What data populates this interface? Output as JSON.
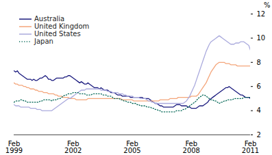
{
  "chart_data": {
    "type": "line",
    "ylabel": "%",
    "categories": [
      "Feb\n1999",
      null,
      null,
      null,
      null,
      null,
      null,
      null,
      null,
      null,
      null,
      null,
      null,
      null,
      null,
      null,
      null,
      null,
      null,
      null,
      null,
      null,
      null,
      null,
      null,
      null,
      null,
      null,
      null,
      null,
      null,
      null,
      null,
      null,
      null,
      null,
      "Feb\n2002",
      null,
      null,
      null,
      null,
      null,
      null,
      null,
      null,
      null,
      null,
      null,
      null,
      null,
      null,
      null,
      null,
      null,
      null,
      null,
      null,
      null,
      null,
      null,
      null,
      null,
      null,
      null,
      null,
      null,
      null,
      null,
      null,
      null,
      null,
      null,
      "Feb\n2005",
      null,
      null,
      null,
      null,
      null,
      null,
      null,
      null,
      null,
      null,
      null,
      null,
      null,
      null,
      null,
      null,
      null,
      null,
      null,
      null,
      null,
      null,
      null,
      null,
      null,
      null,
      null,
      null,
      null,
      null,
      null,
      null,
      null,
      null,
      null,
      "Feb\n2008",
      null,
      null,
      null,
      null,
      null,
      null,
      null,
      null,
      null,
      null,
      null,
      null,
      null,
      null,
      null,
      null,
      null,
      null,
      null,
      null,
      null,
      null,
      null,
      null,
      null,
      null,
      null,
      null,
      null,
      null,
      null,
      null,
      null,
      null,
      null,
      "Feb\n2011"
    ],
    "ylim": [
      2,
      12
    ],
    "yticks": [
      2,
      4,
      6,
      8,
      10,
      12
    ],
    "grid": false,
    "legend": "upper left",
    "series": [
      {
        "name": "Australia",
        "color": "#1a1a7e",
        "line_style": "solid",
        "values": [
          7.3,
          7.2,
          7.3,
          7.1,
          7.0,
          6.9,
          6.8,
          6.7,
          6.6,
          6.6,
          6.6,
          6.5,
          6.6,
          6.5,
          6.5,
          6.6,
          6.7,
          6.7,
          6.8,
          6.9,
          6.8,
          6.6,
          6.6,
          6.5,
          6.5,
          6.6,
          6.7,
          6.7,
          6.7,
          6.7,
          6.7,
          6.8,
          6.8,
          6.9,
          6.9,
          6.8,
          6.7,
          6.6,
          6.5,
          6.4,
          6.3,
          6.4,
          6.3,
          6.2,
          6.2,
          6.3,
          6.2,
          6.1,
          6.0,
          5.9,
          5.9,
          5.9,
          5.8,
          5.9,
          5.8,
          5.7,
          5.7,
          5.7,
          5.6,
          5.5,
          5.5,
          5.5,
          5.4,
          5.3,
          5.3,
          5.3,
          5.2,
          5.2,
          5.2,
          5.2,
          5.2,
          5.1,
          5.1,
          5.1,
          5.1,
          5.1,
          5.1,
          5.1,
          5.1,
          5.0,
          5.0,
          5.0,
          5.0,
          4.9,
          4.8,
          4.7,
          4.6,
          4.6,
          4.5,
          4.4,
          4.4,
          4.3,
          4.3,
          4.3,
          4.3,
          4.3,
          4.3,
          4.3,
          4.4,
          4.5,
          4.5,
          4.5,
          4.4,
          4.4,
          4.4,
          4.4,
          4.3,
          4.3,
          4.2,
          4.2,
          4.2,
          4.2,
          4.3,
          4.4,
          4.4,
          4.4,
          4.5,
          4.6,
          4.7,
          4.9,
          5.0,
          5.1,
          5.2,
          5.3,
          5.4,
          5.5,
          5.6,
          5.7,
          5.8,
          5.9,
          5.9,
          6.0,
          5.9,
          5.8,
          5.7,
          5.6,
          5.5,
          5.4,
          5.3,
          5.3,
          5.2,
          5.1,
          5.1,
          5.1,
          5.0
        ]
      },
      {
        "name": "United Kingdom",
        "color": "#f4a57a",
        "line_style": "solid",
        "values": [
          6.3,
          6.2,
          6.2,
          6.1,
          6.1,
          6.1,
          6.0,
          6.0,
          5.9,
          5.9,
          5.8,
          5.8,
          5.8,
          5.7,
          5.7,
          5.6,
          5.6,
          5.6,
          5.5,
          5.5,
          5.5,
          5.4,
          5.4,
          5.4,
          5.4,
          5.3,
          5.3,
          5.2,
          5.2,
          5.2,
          5.1,
          5.1,
          5.1,
          5.1,
          5.0,
          5.0,
          5.0,
          5.0,
          4.9,
          4.9,
          4.9,
          4.9,
          4.9,
          4.9,
          4.9,
          5.0,
          5.0,
          5.0,
          5.0,
          5.0,
          5.0,
          5.0,
          5.0,
          5.0,
          5.0,
          5.0,
          5.0,
          5.0,
          5.0,
          5.0,
          5.0,
          5.0,
          5.0,
          5.0,
          5.0,
          5.0,
          4.9,
          4.9,
          4.9,
          4.9,
          4.9,
          4.9,
          4.9,
          4.8,
          4.8,
          4.8,
          4.8,
          4.8,
          4.8,
          4.8,
          4.8,
          4.8,
          4.8,
          4.8,
          4.8,
          4.8,
          4.8,
          4.8,
          4.8,
          4.9,
          4.9,
          4.9,
          4.9,
          4.9,
          4.9,
          5.0,
          5.0,
          5.0,
          5.0,
          5.0,
          5.1,
          5.1,
          5.1,
          5.1,
          5.1,
          5.1,
          5.1,
          5.1,
          5.2,
          5.2,
          5.2,
          5.2,
          5.3,
          5.5,
          5.7,
          5.9,
          6.1,
          6.3,
          6.6,
          6.9,
          7.2,
          7.4,
          7.6,
          7.8,
          7.9,
          8.0,
          8.0,
          8.0,
          8.0,
          7.9,
          7.9,
          7.9,
          7.8,
          7.8,
          7.8,
          7.8,
          7.7,
          7.7,
          7.7,
          7.7,
          7.7,
          7.7,
          7.7,
          7.7,
          7.7
        ]
      },
      {
        "name": "United States",
        "color": "#aaaadd",
        "line_style": "solid",
        "values": [
          4.5,
          4.4,
          4.4,
          4.4,
          4.3,
          4.3,
          4.3,
          4.3,
          4.3,
          4.3,
          4.2,
          4.2,
          4.2,
          4.2,
          4.1,
          4.1,
          4.1,
          4.0,
          4.0,
          4.0,
          4.0,
          4.0,
          4.0,
          4.0,
          4.1,
          4.2,
          4.3,
          4.4,
          4.5,
          4.6,
          4.7,
          4.8,
          4.9,
          5.0,
          5.0,
          5.1,
          5.2,
          5.3,
          5.4,
          5.5,
          5.6,
          5.7,
          5.7,
          5.7,
          5.8,
          5.8,
          5.8,
          5.8,
          5.8,
          5.8,
          5.8,
          5.8,
          5.8,
          5.7,
          5.7,
          5.7,
          5.7,
          5.6,
          5.6,
          5.6,
          5.5,
          5.5,
          5.5,
          5.5,
          5.4,
          5.4,
          5.4,
          5.3,
          5.3,
          5.2,
          5.2,
          5.2,
          5.2,
          5.1,
          5.1,
          5.1,
          5.1,
          5.0,
          5.0,
          5.0,
          5.0,
          4.9,
          4.8,
          4.8,
          4.7,
          4.7,
          4.6,
          4.6,
          4.6,
          4.6,
          4.6,
          4.6,
          4.6,
          4.6,
          4.6,
          4.6,
          4.6,
          4.6,
          4.6,
          4.6,
          4.6,
          4.6,
          4.6,
          4.6,
          4.7,
          4.8,
          5.0,
          5.2,
          5.5,
          5.8,
          6.1,
          6.5,
          6.9,
          7.3,
          7.7,
          8.1,
          8.5,
          8.9,
          9.2,
          9.5,
          9.7,
          9.8,
          9.9,
          10.0,
          10.1,
          10.2,
          10.1,
          10.0,
          9.9,
          9.8,
          9.7,
          9.6,
          9.5,
          9.5,
          9.5,
          9.6,
          9.6,
          9.6,
          9.7,
          9.7,
          9.7,
          9.6,
          9.5,
          9.4,
          9.0
        ]
      },
      {
        "name": "Japan",
        "color": "#006655",
        "line_style": "dotted",
        "values": [
          4.7,
          4.8,
          4.8,
          4.8,
          4.9,
          4.9,
          4.8,
          4.8,
          4.7,
          4.7,
          4.7,
          4.7,
          4.7,
          4.7,
          4.7,
          4.7,
          4.8,
          4.8,
          4.9,
          4.9,
          4.9,
          4.9,
          4.9,
          4.8,
          4.9,
          4.9,
          4.9,
          5.0,
          5.0,
          5.1,
          5.2,
          5.3,
          5.3,
          5.4,
          5.4,
          5.4,
          5.5,
          5.5,
          5.5,
          5.5,
          5.4,
          5.4,
          5.4,
          5.4,
          5.3,
          5.3,
          5.3,
          5.3,
          5.4,
          5.4,
          5.4,
          5.4,
          5.4,
          5.4,
          5.3,
          5.3,
          5.3,
          5.2,
          5.2,
          5.2,
          5.1,
          5.0,
          5.0,
          5.0,
          5.0,
          4.9,
          4.9,
          4.8,
          4.8,
          4.7,
          4.7,
          4.7,
          4.6,
          4.6,
          4.6,
          4.5,
          4.5,
          4.4,
          4.4,
          4.4,
          4.4,
          4.3,
          4.3,
          4.3,
          4.2,
          4.2,
          4.1,
          4.1,
          4.0,
          4.0,
          3.9,
          3.9,
          3.9,
          3.9,
          3.9,
          3.9,
          3.9,
          3.9,
          3.9,
          4.0,
          4.0,
          4.0,
          4.0,
          4.1,
          4.1,
          4.2,
          4.3,
          4.4,
          4.5,
          4.6,
          4.7,
          4.8,
          5.0,
          5.1,
          5.2,
          5.3,
          5.3,
          5.2,
          5.1,
          5.0,
          4.9,
          4.9,
          4.8,
          4.8,
          4.7,
          4.6,
          4.7,
          4.7,
          4.8,
          4.8,
          4.9,
          4.9,
          4.9,
          4.9,
          5.0,
          5.0,
          5.0,
          5.0,
          5.0,
          5.0,
          5.1,
          5.1,
          5.1,
          5.1,
          5.1
        ]
      }
    ]
  }
}
